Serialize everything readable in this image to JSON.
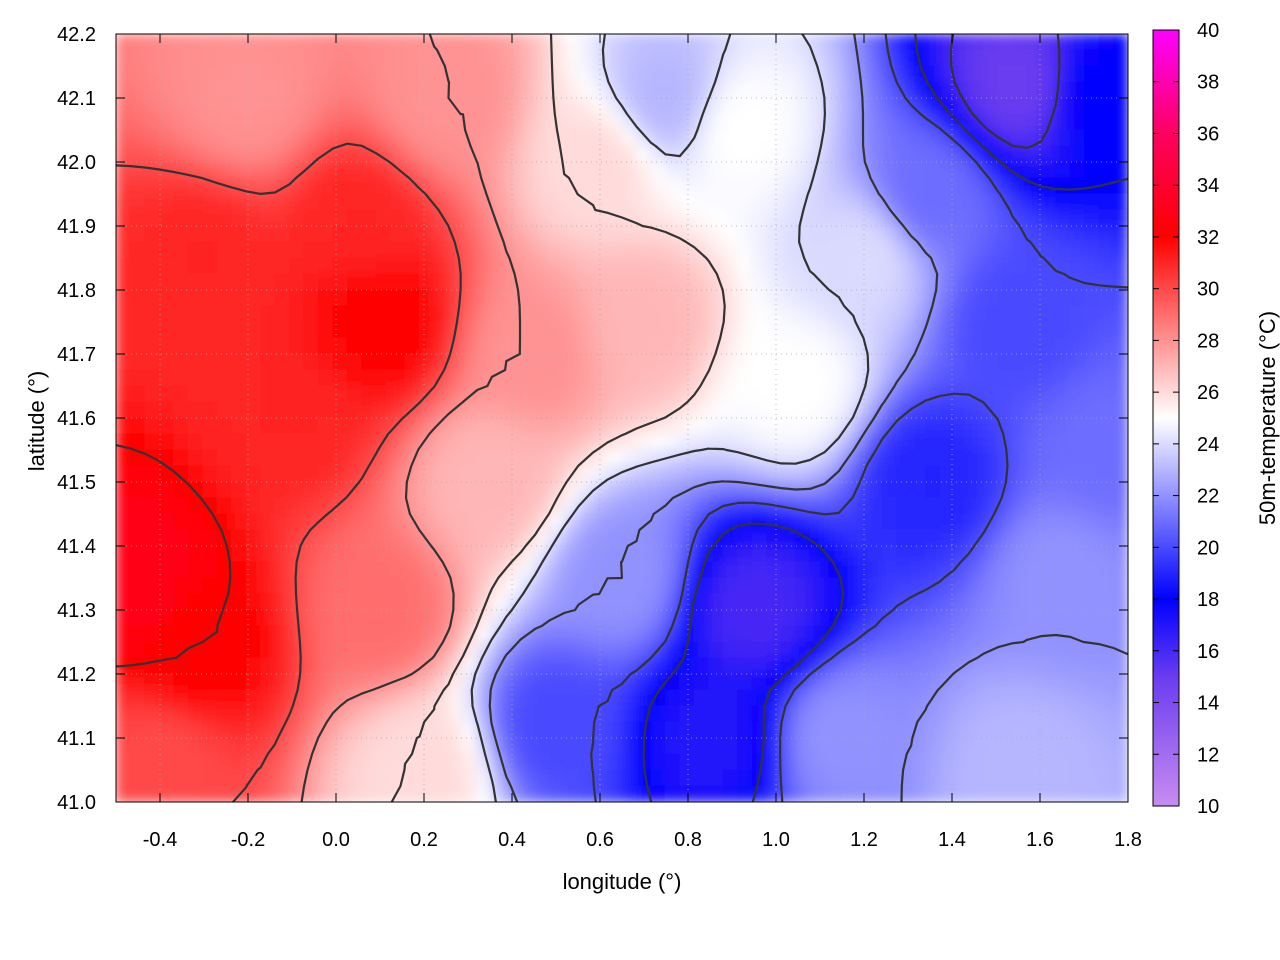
{
  "chart_data": {
    "type": "heatmap",
    "subtype": "temperature map with contour lines",
    "xlabel": "longitude (°)",
    "ylabel": "latitude (°)",
    "colorbar_label": "50m-temperature (°C)",
    "xlim": [
      -0.5,
      1.8
    ],
    "ylim": [
      41.0,
      42.2
    ],
    "xticks": [
      -0.4,
      -0.2,
      0.0,
      0.2,
      0.4,
      0.6,
      0.8,
      1.0,
      1.2,
      1.4,
      1.6,
      1.8
    ],
    "xtick_labels": [
      "-0.4",
      "-0.2",
      "0.0",
      "0.2",
      "0.4",
      "0.6",
      "0.8",
      "1.0",
      "1.2",
      "1.4",
      "1.6",
      "1.8"
    ],
    "yticks": [
      41.0,
      41.1,
      41.2,
      41.3,
      41.4,
      41.5,
      41.6,
      41.7,
      41.8,
      41.9,
      42.0,
      42.1,
      42.2
    ],
    "ytick_labels": [
      "41.0",
      "41.1",
      "41.2",
      "41.3",
      "41.4",
      "41.5",
      "41.6",
      "41.7",
      "41.8",
      "41.9",
      "42.0",
      "42.1",
      "42.2"
    ],
    "colorbar_range": [
      10,
      40
    ],
    "colorbar_ticks": [
      10,
      12,
      14,
      16,
      18,
      20,
      22,
      24,
      26,
      28,
      30,
      32,
      34,
      36,
      38,
      40
    ],
    "colorbar_tick_labels": [
      "10",
      "12",
      "14",
      "16",
      "18",
      "20",
      "22",
      "24",
      "26",
      "28",
      "30",
      "32",
      "34",
      "36",
      "38",
      "40"
    ],
    "colormap_stops": [
      {
        "value": 10,
        "color": "#c88cf0"
      },
      {
        "value": 15,
        "color": "#6a3cf0"
      },
      {
        "value": 18,
        "color": "#0000ff"
      },
      {
        "value": 25,
        "color": "#ffffff"
      },
      {
        "value": 32,
        "color": "#ff0000"
      },
      {
        "value": 36,
        "color": "#ff0060"
      },
      {
        "value": 40,
        "color": "#ff00ff"
      }
    ],
    "temperature_field_estimate": [
      {
        "lon": -0.45,
        "lat": 41.35,
        "value": 33
      },
      {
        "lon": -0.3,
        "lat": 41.25,
        "value": 32
      },
      {
        "lon": -0.4,
        "lat": 41.05,
        "value": 30
      },
      {
        "lon": -0.3,
        "lat": 41.85,
        "value": 31
      },
      {
        "lon": -0.1,
        "lat": 41.6,
        "value": 31
      },
      {
        "lon": 0.1,
        "lat": 41.75,
        "value": 32
      },
      {
        "lon": 0.05,
        "lat": 41.9,
        "value": 31
      },
      {
        "lon": -0.2,
        "lat": 42.1,
        "value": 28
      },
      {
        "lon": 0.25,
        "lat": 42.1,
        "value": 28
      },
      {
        "lon": 0.1,
        "lat": 41.3,
        "value": 29
      },
      {
        "lon": 0.2,
        "lat": 41.05,
        "value": 26
      },
      {
        "lon": 0.35,
        "lat": 41.5,
        "value": 27
      },
      {
        "lon": 0.45,
        "lat": 41.7,
        "value": 28
      },
      {
        "lon": 0.7,
        "lat": 41.75,
        "value": 27
      },
      {
        "lon": 0.6,
        "lat": 42.0,
        "value": 26
      },
      {
        "lon": 0.75,
        "lat": 42.1,
        "value": 23
      },
      {
        "lon": 0.92,
        "lat": 42.05,
        "value": 25
      },
      {
        "lon": 1.05,
        "lat": 41.65,
        "value": 25
      },
      {
        "lon": 1.2,
        "lat": 41.85,
        "value": 24
      },
      {
        "lon": 0.5,
        "lat": 41.12,
        "value": 20
      },
      {
        "lon": 0.65,
        "lat": 41.35,
        "value": 22
      },
      {
        "lon": 0.95,
        "lat": 41.3,
        "value": 16
      },
      {
        "lon": 0.85,
        "lat": 41.1,
        "value": 17
      },
      {
        "lon": 1.15,
        "lat": 41.1,
        "value": 22
      },
      {
        "lon": 1.35,
        "lat": 41.5,
        "value": 19
      },
      {
        "lon": 1.55,
        "lat": 41.75,
        "value": 20
      },
      {
        "lon": 1.35,
        "lat": 41.95,
        "value": 21
      },
      {
        "lon": 1.55,
        "lat": 42.12,
        "value": 15
      },
      {
        "lon": 1.75,
        "lat": 42.1,
        "value": 18
      },
      {
        "lon": 1.65,
        "lat": 41.35,
        "value": 22
      },
      {
        "lon": 1.55,
        "lat": 41.05,
        "value": 23
      },
      {
        "lon": 1.75,
        "lat": 41.55,
        "value": 21
      }
    ],
    "grid": true,
    "contour_lines": true,
    "colorbar_position": "right"
  }
}
